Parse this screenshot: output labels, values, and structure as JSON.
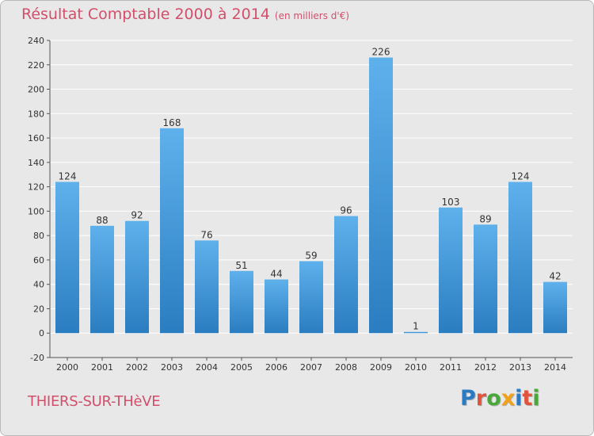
{
  "title": "Résultat Comptable 2000 à 2014",
  "subtitle": "(en milliers d'€)",
  "commune": "THIERS-SUR-THèVE",
  "brand": {
    "letters": [
      "P",
      "r",
      "o",
      "x",
      "i",
      "t",
      "i"
    ],
    "colors": [
      "#2a7bc4",
      "#e0533c",
      "#4aa83a",
      "#f0a21b",
      "#2a7bc4",
      "#e0533c",
      "#4aa83a"
    ]
  },
  "colors": {
    "bar_top": "#5fb1ec",
    "bar_bottom": "#2a7dc0",
    "title": "#d24f6b",
    "grid": "#ffffff",
    "background": "#e8e8e8"
  },
  "chart_data": {
    "type": "bar",
    "categories": [
      "2000",
      "2001",
      "2002",
      "2003",
      "2004",
      "2005",
      "2006",
      "2007",
      "2008",
      "2009",
      "2010",
      "2011",
      "2012",
      "2013",
      "2014"
    ],
    "values": [
      124,
      88,
      92,
      168,
      76,
      51,
      44,
      59,
      96,
      226,
      1,
      103,
      89,
      124,
      42
    ],
    "value_labels": [
      "124",
      "88",
      "92",
      "168",
      "76",
      "51",
      "44",
      "59",
      "96",
      "226",
      "1",
      "103",
      "89",
      "124",
      "42"
    ],
    "yticks": [
      "-20",
      "0",
      "20",
      "40",
      "60",
      "80",
      "100",
      "120",
      "140",
      "160",
      "180",
      "200",
      "220",
      "240"
    ],
    "ylim": [
      -20,
      240
    ],
    "grid": true,
    "title": "Résultat Comptable 2000 à 2014",
    "xlabel": "",
    "ylabel": ""
  }
}
